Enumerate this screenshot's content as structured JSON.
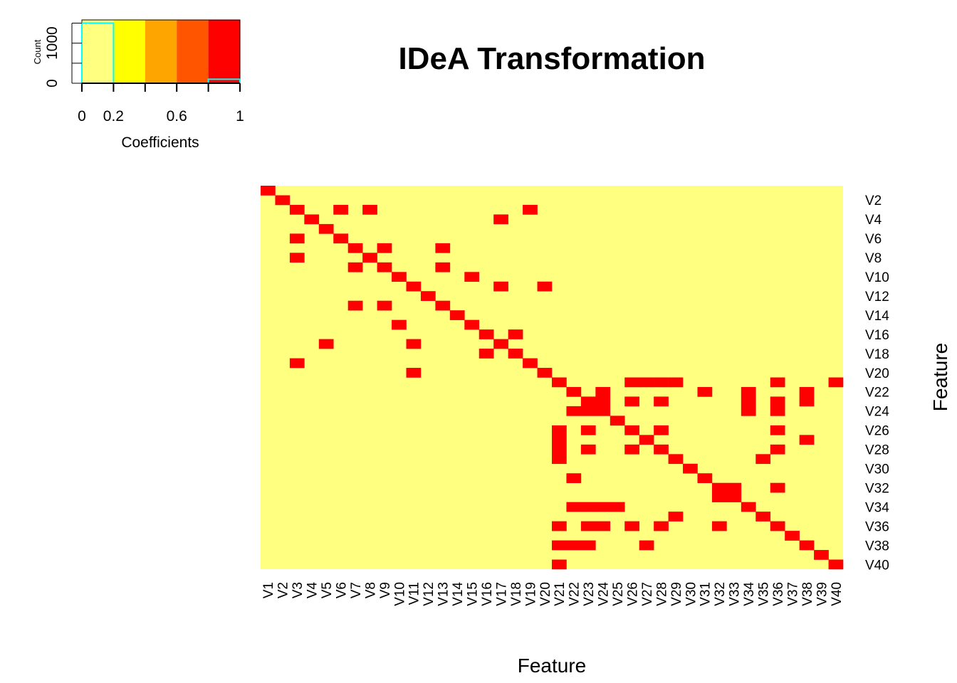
{
  "title": "IDeA Transformation",
  "colors": {
    "palette": [
      "#FFFF80",
      "#FFFF00",
      "#FFA500",
      "#FF5500",
      "#FF0000"
    ],
    "low": "#FFFF80",
    "high": "#FF0000",
    "histogram_line": "#00FFFF"
  },
  "chart_data": [
    {
      "type": "heatmap",
      "title": "IDeA Transformation",
      "xlabel": "Feature",
      "ylabel": "Feature",
      "x_labels": [
        "V1",
        "V2",
        "V3",
        "V4",
        "V5",
        "V6",
        "V7",
        "V8",
        "V9",
        "V10",
        "V11",
        "V12",
        "V13",
        "V14",
        "V15",
        "V16",
        "V17",
        "V18",
        "V19",
        "V20",
        "V21",
        "V22",
        "V23",
        "V24",
        "V25",
        "V26",
        "V27",
        "V28",
        "V29",
        "V30",
        "V31",
        "V32",
        "V33",
        "V34",
        "V35",
        "V36",
        "V37",
        "V38",
        "V39",
        "V40"
      ],
      "y_tick_labels": [
        "V2",
        "V4",
        "V6",
        "V8",
        "V10",
        "V12",
        "V14",
        "V16",
        "V18",
        "V20",
        "V22",
        "V24",
        "V26",
        "V28",
        "V30",
        "V32",
        "V34",
        "V36",
        "V38",
        "V40"
      ],
      "value_range": [
        0,
        1
      ],
      "nonzero_cells": {
        "1": [
          1
        ],
        "2": [
          2
        ],
        "3": [
          3,
          6,
          8,
          19
        ],
        "4": [
          4,
          17
        ],
        "5": [
          5
        ],
        "6": [
          3,
          6
        ],
        "7": [
          7,
          9,
          13
        ],
        "8": [
          3,
          8
        ],
        "9": [
          7,
          9,
          13
        ],
        "10": [
          10,
          15
        ],
        "11": [
          11,
          17,
          20
        ],
        "12": [
          12
        ],
        "13": [
          7,
          9,
          13
        ],
        "14": [
          14
        ],
        "15": [
          10,
          15
        ],
        "16": [
          16,
          18
        ],
        "17": [
          5,
          11,
          17
        ],
        "18": [
          16,
          18
        ],
        "19": [
          3,
          19
        ],
        "20": [
          11,
          20
        ],
        "21": [
          21,
          26,
          27,
          28,
          29,
          36,
          40
        ],
        "22": [
          22,
          24,
          31,
          34,
          38
        ],
        "23": [
          23,
          24,
          26,
          28,
          34,
          36,
          38
        ],
        "24": [
          22,
          23,
          24,
          34,
          36
        ],
        "25": [
          25
        ],
        "26": [
          21,
          23,
          26,
          28,
          36
        ],
        "27": [
          21,
          27,
          38
        ],
        "28": [
          21,
          23,
          26,
          28,
          36
        ],
        "29": [
          21,
          29,
          35
        ],
        "30": [
          30
        ],
        "31": [
          22,
          31
        ],
        "32": [
          32,
          33,
          36
        ],
        "33": [
          32,
          33
        ],
        "34": [
          22,
          23,
          24,
          25,
          34
        ],
        "35": [
          29,
          35
        ],
        "36": [
          21,
          23,
          24,
          26,
          28,
          32,
          36
        ],
        "37": [
          37
        ],
        "38": [
          21,
          22,
          23,
          27,
          38
        ],
        "39": [
          39
        ],
        "40": [
          21,
          40
        ]
      }
    },
    {
      "type": "bar",
      "title": "",
      "xlabel": "Coefficients",
      "ylabel": "Count",
      "x_ticks": [
        "0",
        "0.2",
        "0.6",
        "1"
      ],
      "y_ticks": [
        "0",
        "1000"
      ],
      "bins": [
        [
          0,
          0.2
        ],
        [
          0.2,
          0.4
        ],
        [
          0.4,
          0.6
        ],
        [
          0.6,
          0.8
        ],
        [
          0.8,
          1.0
        ]
      ],
      "values": [
        1500,
        0,
        0,
        0,
        100
      ],
      "ylim": [
        0,
        1580
      ]
    }
  ]
}
